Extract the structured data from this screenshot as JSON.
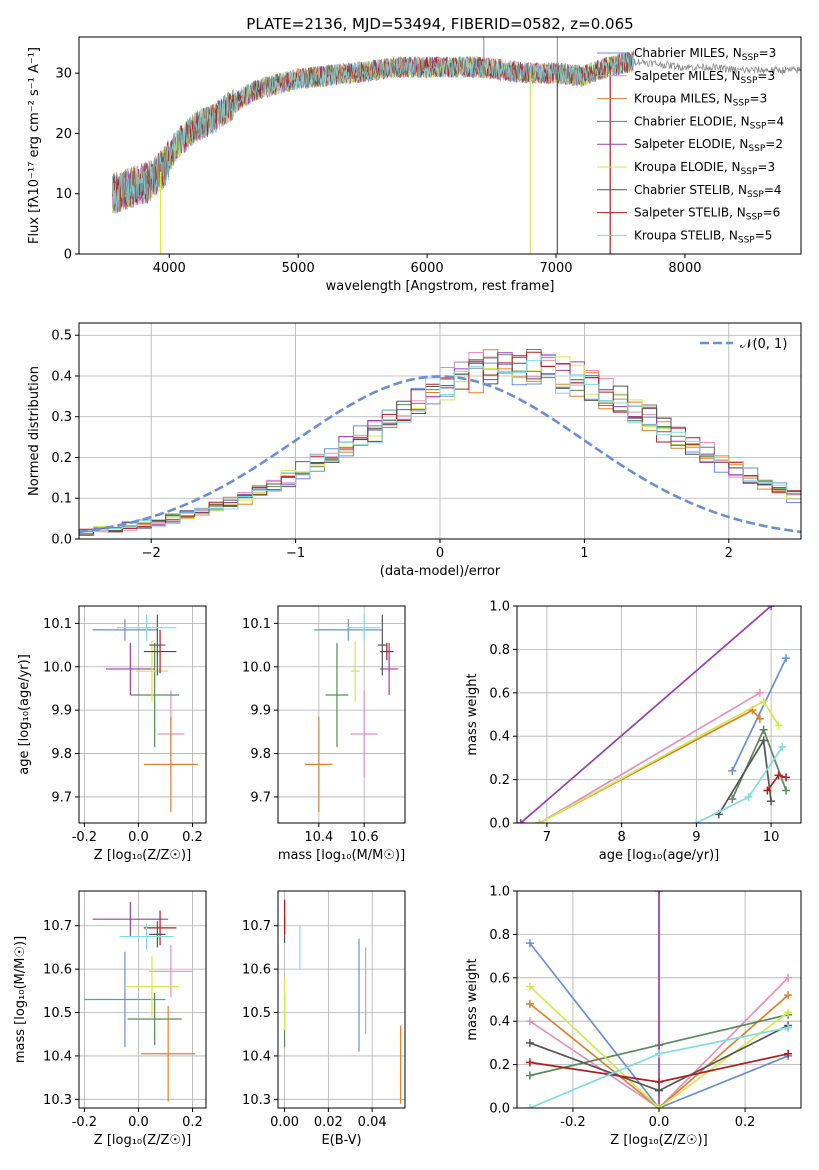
{
  "figure_title": "PLATE=2136, MJD=53494, FIBERID=0582, z=0.065",
  "colors": {
    "Chabrier MILES": "#6a8fd6",
    "Salpeter MILES": "#e68fc2",
    "Kroupa MILES": "#e08030",
    "Chabrier ELODIE": "#5a8a5a",
    "Salpeter ELODIE": "#9a3db0",
    "Kroupa ELODIE": "#d4e84f",
    "Chabrier STELIB": "#555555",
    "Salpeter STELIB": "#b01e1e",
    "Kroupa STELIB": "#7fdce0",
    "normal_curve": "#6a8fd6",
    "grid": "#b0b0b0"
  },
  "chart_data": [
    {
      "id": "spectrum",
      "type": "line",
      "title": "PLATE=2136, MJD=53494, FIBERID=0582, z=0.065",
      "xlabel": "wavelength [Angstrom, rest frame]",
      "ylabel": "Flux [fλ10⁻¹⁷ erg cm⁻² s⁻¹ A⁻¹]",
      "xlim": [
        3300,
        8900
      ],
      "ylim": [
        0,
        36
      ],
      "xticks": [
        4000,
        5000,
        6000,
        7000,
        8000
      ],
      "yticks": [
        0,
        10,
        20,
        30
      ],
      "grid": false,
      "legend_position": "top-right",
      "legend": [
        {
          "label": "Chabrier MILES, N",
          "sub": "SSP",
          "tail": "=3"
        },
        {
          "label": "Salpeter MILES, N",
          "sub": "SSP",
          "tail": "=3"
        },
        {
          "label": "Kroupa MILES, N",
          "sub": "SSP",
          "tail": "=3"
        },
        {
          "label": "Chabrier ELODIE, N",
          "sub": "SSP",
          "tail": "=4"
        },
        {
          "label": "Salpeter ELODIE, N",
          "sub": "SSP",
          "tail": "=2"
        },
        {
          "label": "Kroupa ELODIE, N",
          "sub": "SSP",
          "tail": "=3"
        },
        {
          "label": "Chabrier STELIB, N",
          "sub": "SSP",
          "tail": "=4"
        },
        {
          "label": "Salpeter STELIB, N",
          "sub": "SSP",
          "tail": "=6"
        },
        {
          "label": "Kroupa STELIB, N",
          "sub": "SSP",
          "tail": "=5"
        }
      ],
      "continuum": {
        "x": [
          3560,
          3700,
          3850,
          3950,
          4050,
          4200,
          4350,
          4500,
          4650,
          4800,
          5000,
          5200,
          5400,
          5600,
          5800,
          6000,
          6200,
          6400,
          6600,
          6800,
          7000,
          7200,
          7400,
          7600,
          7800,
          8000,
          8200,
          8400,
          8600,
          8800
        ],
        "y": [
          10,
          11,
          12,
          14,
          18,
          21,
          22.5,
          25,
          27,
          28,
          29,
          29.5,
          30,
          30.5,
          31,
          31,
          31,
          31,
          30.5,
          30,
          30,
          29.5,
          31,
          32,
          31.5,
          31,
          31,
          30.5,
          30.5,
          30.5
        ]
      },
      "absorption_lines": [
        {
          "x": 3933,
          "y": 0
        },
        {
          "x": 6800,
          "y": 0
        },
        {
          "x": 7010,
          "y": 0
        },
        {
          "x": 7420,
          "y": 0
        }
      ]
    },
    {
      "id": "residual_histogram",
      "type": "histogram",
      "xlabel": "(data-model)/error",
      "ylabel": "Normed distribution",
      "xlim": [
        -2.5,
        2.5
      ],
      "ylim": [
        0,
        0.53
      ],
      "xticks": [
        -2,
        -1,
        0,
        1,
        2
      ],
      "yticks": [
        0.0,
        0.1,
        0.2,
        0.3,
        0.4,
        0.5
      ],
      "grid": true,
      "legend_position": "top-right",
      "curve_label": "𝒩(0, 1)",
      "bin_edges_start": -2.5,
      "bin_width": 0.1,
      "base_distribution": [
        0.018,
        0.022,
        0.026,
        0.031,
        0.037,
        0.043,
        0.05,
        0.059,
        0.068,
        0.079,
        0.091,
        0.104,
        0.118,
        0.133,
        0.15,
        0.168,
        0.187,
        0.207,
        0.228,
        0.25,
        0.273,
        0.296,
        0.319,
        0.34,
        0.361,
        0.379,
        0.395,
        0.408,
        0.418,
        0.425,
        0.428,
        0.425,
        0.418,
        0.408,
        0.395,
        0.379,
        0.361,
        0.34,
        0.319,
        0.296,
        0.273,
        0.25,
        0.228,
        0.207,
        0.187,
        0.168,
        0.15,
        0.133,
        0.118,
        0.104
      ]
    },
    {
      "id": "age_vs_Z",
      "type": "errorbar",
      "xlabel": "Z [log₁₀(Z/Z☉)]",
      "ylabel": "age  [log₁₀(age/yr)]",
      "xlim": [
        -0.22,
        0.25
      ],
      "ylim": [
        9.64,
        10.14
      ],
      "xticks": [
        -0.2,
        0.0,
        0.2
      ],
      "yticks": [
        9.7,
        9.8,
        9.9,
        10.0,
        10.1
      ],
      "grid": true,
      "points": [
        {
          "series": "Chabrier MILES",
          "x": -0.05,
          "xerr": 0.12,
          "y": 10.085,
          "yerr": 0.025
        },
        {
          "series": "Salpeter MILES",
          "x": 0.12,
          "xerr": 0.05,
          "y": 9.845,
          "yerr": 0.1
        },
        {
          "series": "Kroupa MILES",
          "x": 0.12,
          "xerr": 0.1,
          "y": 9.775,
          "yerr": 0.11
        },
        {
          "series": "Chabrier ELODIE",
          "x": 0.06,
          "xerr": 0.09,
          "y": 9.935,
          "yerr": 0.12
        },
        {
          "series": "Salpeter ELODIE",
          "x": -0.03,
          "xerr": 0.09,
          "y": 9.995,
          "yerr": 0.06
        },
        {
          "series": "Kroupa ELODIE",
          "x": 0.05,
          "xerr": 0.06,
          "y": 9.99,
          "yerr": 0.07
        },
        {
          "series": "Chabrier STELIB",
          "x": 0.07,
          "xerr": 0.03,
          "y": 10.05,
          "yerr": 0.07
        },
        {
          "series": "Salpeter STELIB",
          "x": 0.08,
          "xerr": 0.06,
          "y": 10.035,
          "yerr": 0.05
        },
        {
          "series": "Kroupa STELIB",
          "x": 0.03,
          "xerr": 0.11,
          "y": 10.09,
          "yerr": 0.03
        }
      ]
    },
    {
      "id": "age_vs_mass",
      "type": "errorbar",
      "xlabel": "mass [log₁₀(M/M☉)]",
      "ylabel": "",
      "xlim": [
        10.22,
        10.78
      ],
      "ylim": [
        9.64,
        10.14
      ],
      "xticks": [
        10.4,
        10.6
      ],
      "yticks": [
        9.7,
        9.8,
        9.9,
        10.0,
        10.1
      ],
      "grid": true,
      "points": [
        {
          "series": "Chabrier MILES",
          "x": 10.53,
          "xerr": 0.15,
          "y": 10.085,
          "yerr": 0.025
        },
        {
          "series": "Salpeter MILES",
          "x": 10.6,
          "xerr": 0.06,
          "y": 9.845,
          "yerr": 0.1
        },
        {
          "series": "Kroupa MILES",
          "x": 10.4,
          "xerr": 0.06,
          "y": 9.775,
          "yerr": 0.11
        },
        {
          "series": "Chabrier ELODIE",
          "x": 10.48,
          "xerr": 0.05,
          "y": 9.935,
          "yerr": 0.12
        },
        {
          "series": "Salpeter ELODIE",
          "x": 10.71,
          "xerr": 0.04,
          "y": 9.995,
          "yerr": 0.06
        },
        {
          "series": "Kroupa ELODIE",
          "x": 10.56,
          "xerr": 0.02,
          "y": 9.99,
          "yerr": 0.07
        },
        {
          "series": "Chabrier STELIB",
          "x": 10.68,
          "xerr": 0.02,
          "y": 10.05,
          "yerr": 0.07
        },
        {
          "series": "Salpeter STELIB",
          "x": 10.7,
          "xerr": 0.03,
          "y": 10.035,
          "yerr": 0.02
        },
        {
          "series": "Kroupa STELIB",
          "x": 10.6,
          "xerr": 0.07,
          "y": 10.09,
          "yerr": 0.03
        }
      ]
    },
    {
      "id": "weight_vs_age",
      "type": "line",
      "xlabel": "age  [log₁₀(age/yr)]",
      "ylabel": "mass weight",
      "xlim": [
        6.6,
        10.4
      ],
      "ylim": [
        0,
        1.0
      ],
      "xticks": [
        7,
        8,
        9,
        10
      ],
      "yticks": [
        0.0,
        0.2,
        0.4,
        0.6,
        0.8,
        1.0
      ],
      "grid": true,
      "series": [
        {
          "name": "Chabrier MILES",
          "x": [
            9.48,
            10.2
          ],
          "y": [
            0.24,
            0.76
          ]
        },
        {
          "name": "Salpeter MILES",
          "x": [
            6.9,
            9.85
          ],
          "y": [
            0.0,
            0.6
          ]
        },
        {
          "name": "Kroupa MILES",
          "x": [
            6.9,
            9.75,
            9.85
          ],
          "y": [
            0.0,
            0.52,
            0.48
          ]
        },
        {
          "name": "Chabrier ELODIE",
          "x": [
            9.48,
            9.9,
            10.2
          ],
          "y": [
            0.11,
            0.43,
            0.15
          ]
        },
        {
          "name": "Salpeter ELODIE",
          "x": [
            6.65,
            10.0
          ],
          "y": [
            0.0,
            1.0
          ]
        },
        {
          "name": "Kroupa ELODIE",
          "x": [
            6.9,
            9.9,
            10.1
          ],
          "y": [
            0.0,
            0.56,
            0.45
          ]
        },
        {
          "name": "Chabrier STELIB",
          "x": [
            9.3,
            9.9,
            10.0
          ],
          "y": [
            0.04,
            0.38,
            0.1
          ]
        },
        {
          "name": "Salpeter STELIB",
          "x": [
            9.95,
            10.1,
            10.2
          ],
          "y": [
            0.15,
            0.22,
            0.21
          ]
        },
        {
          "name": "Kroupa STELIB",
          "x": [
            9.0,
            9.7,
            10.15
          ],
          "y": [
            0.0,
            0.12,
            0.35
          ]
        }
      ]
    },
    {
      "id": "mass_vs_Z",
      "type": "errorbar",
      "xlabel": "Z [log₁₀(Z/Z☉)]",
      "ylabel": "mass [log₁₀(M/M☉)]",
      "xlim": [
        -0.22,
        0.25
      ],
      "ylim": [
        10.28,
        10.78
      ],
      "xticks": [
        -0.2,
        0.0,
        0.2
      ],
      "yticks": [
        10.3,
        10.4,
        10.5,
        10.6,
        10.7
      ],
      "grid": true,
      "points": [
        {
          "series": "Chabrier MILES",
          "x": -0.05,
          "xerr": 0.15,
          "y": 10.53,
          "yerr": 0.11
        },
        {
          "series": "Salpeter MILES",
          "x": 0.12,
          "xerr": 0.08,
          "y": 10.595,
          "yerr": 0.06
        },
        {
          "series": "Kroupa MILES",
          "x": 0.11,
          "xerr": 0.1,
          "y": 10.405,
          "yerr": 0.11
        },
        {
          "series": "Chabrier ELODIE",
          "x": 0.06,
          "xerr": 0.1,
          "y": 10.485,
          "yerr": 0.06
        },
        {
          "series": "Salpeter ELODIE",
          "x": -0.03,
          "xerr": 0.14,
          "y": 10.715,
          "yerr": 0.04
        },
        {
          "series": "Kroupa ELODIE",
          "x": 0.05,
          "xerr": 0.1,
          "y": 10.56,
          "yerr": 0.07
        },
        {
          "series": "Chabrier STELIB",
          "x": 0.07,
          "xerr": 0.03,
          "y": 10.68,
          "yerr": 0.03
        },
        {
          "series": "Salpeter STELIB",
          "x": 0.08,
          "xerr": 0.06,
          "y": 10.695,
          "yerr": 0.04
        },
        {
          "series": "Kroupa STELIB",
          "x": 0.03,
          "xerr": 0.1,
          "y": 10.675,
          "yerr": 0.03
        }
      ]
    },
    {
      "id": "mass_vs_ebv",
      "type": "errorbar",
      "xlabel": "E(B-V)",
      "ylabel": "",
      "xlim": [
        -0.003,
        0.055
      ],
      "ylim": [
        10.28,
        10.78
      ],
      "xticks": [
        0.0,
        0.02,
        0.04
      ],
      "yticks": [
        10.3,
        10.4,
        10.5,
        10.6,
        10.7
      ],
      "grid": true,
      "points": [
        {
          "series": "Chabrier MILES",
          "x": 0.034,
          "xerr": 0.0,
          "y": 10.54,
          "yerr": 0.13
        },
        {
          "series": "Salpeter MILES",
          "x": 0.037,
          "xerr": 0.0,
          "y": 10.55,
          "yerr": 0.1
        },
        {
          "series": "Kroupa MILES",
          "x": 0.053,
          "xerr": 0.0,
          "y": 10.38,
          "yerr": 0.09
        },
        {
          "series": "Chabrier ELODIE",
          "x": 0.0,
          "xerr": 0.0,
          "y": 10.48,
          "yerr": 0.06
        },
        {
          "series": "Salpeter ELODIE",
          "x": 0.0,
          "xerr": 0.0,
          "y": 10.72,
          "yerr": 0.04
        },
        {
          "series": "Kroupa ELODIE",
          "x": 0.0,
          "xerr": 0.0,
          "y": 10.52,
          "yerr": 0.06
        },
        {
          "series": "Chabrier STELIB",
          "x": 0.0,
          "xerr": 0.0,
          "y": 10.69,
          "yerr": 0.03
        },
        {
          "series": "Salpeter STELIB",
          "x": 0.0,
          "xerr": 0.0,
          "y": 10.72,
          "yerr": 0.04
        },
        {
          "series": "Kroupa STELIB",
          "x": 0.007,
          "xerr": 0.0,
          "y": 10.65,
          "yerr": 0.05
        }
      ]
    },
    {
      "id": "weight_vs_Z",
      "type": "line",
      "xlabel": "Z [log₁₀(Z/Z☉)]",
      "ylabel": "mass weight",
      "xlim": [
        -0.33,
        0.33
      ],
      "ylim": [
        0,
        1.0
      ],
      "xticks": [
        -0.2,
        0.0,
        0.2
      ],
      "yticks": [
        0.0,
        0.2,
        0.4,
        0.6,
        0.8,
        1.0
      ],
      "grid": true,
      "series": [
        {
          "name": "Chabrier MILES",
          "x": [
            -0.3,
            0.0,
            0.3
          ],
          "y": [
            0.76,
            0.0,
            0.24
          ]
        },
        {
          "name": "Salpeter MILES",
          "x": [
            -0.3,
            0.0,
            0.3
          ],
          "y": [
            0.4,
            0.0,
            0.6
          ]
        },
        {
          "name": "Kroupa MILES",
          "x": [
            -0.3,
            0.0,
            0.3
          ],
          "y": [
            0.48,
            0.0,
            0.52
          ]
        },
        {
          "name": "Chabrier ELODIE",
          "x": [
            -0.3,
            0.0,
            0.3
          ],
          "y": [
            0.15,
            0.29,
            0.43
          ]
        },
        {
          "name": "Salpeter ELODIE",
          "x": [
            0.0,
            0.0
          ],
          "y": [
            0.0,
            1.0
          ]
        },
        {
          "name": "Kroupa ELODIE",
          "x": [
            -0.3,
            0.0,
            0.3
          ],
          "y": [
            0.56,
            0.0,
            0.44
          ]
        },
        {
          "name": "Chabrier STELIB",
          "x": [
            -0.3,
            0.0,
            0.3
          ],
          "y": [
            0.3,
            0.08,
            0.38
          ]
        },
        {
          "name": "Salpeter STELIB",
          "x": [
            -0.3,
            0.0,
            0.3
          ],
          "y": [
            0.21,
            0.12,
            0.25
          ]
        },
        {
          "name": "Kroupa STELIB",
          "x": [
            -0.3,
            0.0,
            0.3
          ],
          "y": [
            0.0,
            0.25,
            0.37
          ]
        }
      ]
    }
  ]
}
